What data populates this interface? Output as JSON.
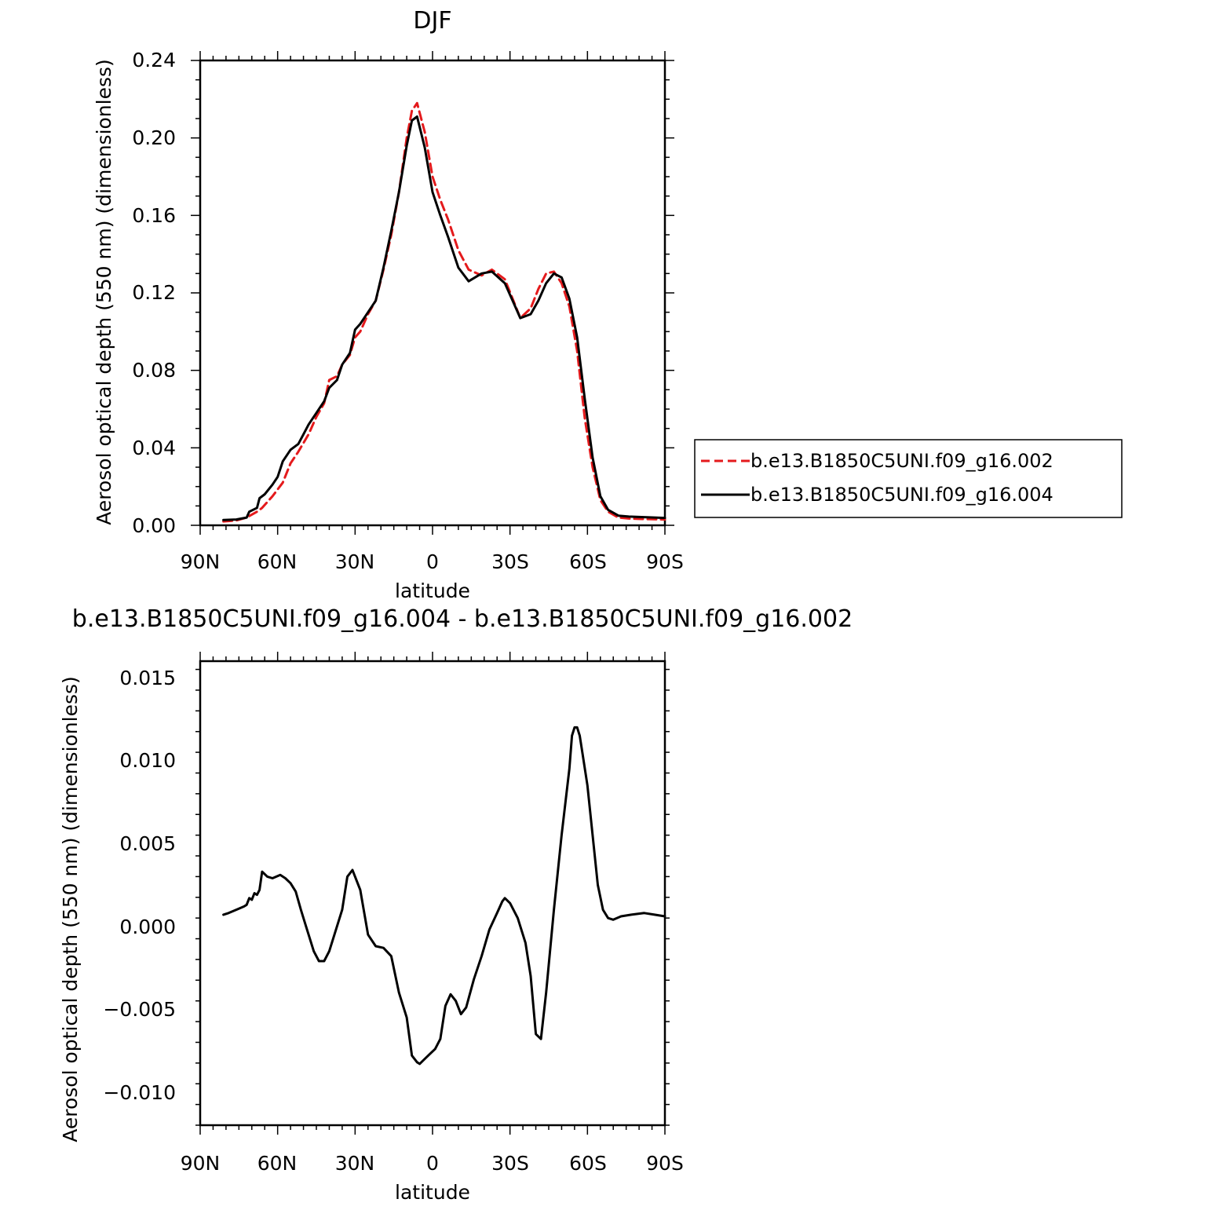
{
  "chart_data": [
    {
      "type": "line",
      "title": "DJF",
      "xlabel": "latitude",
      "ylabel": "Aerosol optical depth (550 nm) (dimensionless)",
      "xlim": [
        90,
        -90
      ],
      "ylim": [
        0.0,
        0.24
      ],
      "x_ticks": [
        "90N",
        "60N",
        "30N",
        "0",
        "30S",
        "60S",
        "90S"
      ],
      "y_ticks": [
        "0.00",
        "0.04",
        "0.08",
        "0.12",
        "0.16",
        "0.20",
        "0.24"
      ],
      "grid": false,
      "legend": "right",
      "series": [
        {
          "name": "b.e13.B1850C5UNI.f09_g16.002",
          "color": "#e41a1c",
          "dash": "dashed",
          "x": [
            81,
            76,
            72,
            68,
            66,
            62,
            58,
            55,
            52,
            48,
            45,
            42,
            40,
            37,
            35,
            32,
            30,
            28,
            25,
            22,
            19,
            16,
            13,
            10,
            8,
            6,
            3,
            0,
            -3,
            -6,
            -10,
            -14,
            -19,
            -23,
            -28,
            -31,
            -34,
            -38,
            -41,
            -44,
            -47,
            -50,
            -53,
            -56,
            -59,
            -62,
            -65,
            -68,
            -72,
            -76,
            -80,
            -84,
            -90
          ],
          "values": [
            0.002,
            0.0025,
            0.004,
            0.007,
            0.009,
            0.015,
            0.022,
            0.032,
            0.038,
            0.047,
            0.056,
            0.063,
            0.075,
            0.077,
            0.083,
            0.088,
            0.097,
            0.1,
            0.109,
            0.116,
            0.132,
            0.15,
            0.172,
            0.2,
            0.214,
            0.218,
            0.203,
            0.18,
            0.168,
            0.158,
            0.142,
            0.132,
            0.129,
            0.132,
            0.127,
            0.117,
            0.107,
            0.112,
            0.122,
            0.13,
            0.131,
            0.125,
            0.113,
            0.09,
            0.055,
            0.03,
            0.013,
            0.007,
            0.004,
            0.0035,
            0.0033,
            0.0032,
            0.003
          ]
        },
        {
          "name": "b.e13.B1850C5UNI.f09_g16.004",
          "color": "#000000",
          "dash": "solid",
          "x": [
            81,
            76,
            72,
            71,
            68,
            67,
            65,
            62,
            60,
            58,
            55,
            52,
            50,
            48,
            45,
            42,
            40,
            37,
            35,
            32,
            30,
            28,
            25,
            22,
            19,
            16,
            13,
            10,
            8,
            6,
            3,
            0,
            -3,
            -6,
            -10,
            -14,
            -19,
            -23,
            -28,
            -31,
            -34,
            -38,
            -41,
            -44,
            -47,
            -50,
            -53,
            -56,
            -59,
            -62,
            -65,
            -68,
            -72,
            -76,
            -80,
            -84,
            -90
          ],
          "values": [
            0.0027,
            0.003,
            0.004,
            0.007,
            0.009,
            0.014,
            0.016,
            0.021,
            0.025,
            0.033,
            0.039,
            0.042,
            0.047,
            0.052,
            0.058,
            0.064,
            0.071,
            0.075,
            0.083,
            0.089,
            0.101,
            0.104,
            0.11,
            0.116,
            0.133,
            0.152,
            0.172,
            0.196,
            0.209,
            0.211,
            0.195,
            0.172,
            0.16,
            0.149,
            0.133,
            0.126,
            0.13,
            0.131,
            0.125,
            0.116,
            0.107,
            0.109,
            0.116,
            0.125,
            0.13,
            0.128,
            0.117,
            0.097,
            0.065,
            0.035,
            0.015,
            0.008,
            0.005,
            0.0045,
            0.0043,
            0.0041,
            0.0038
          ]
        }
      ]
    },
    {
      "type": "line",
      "title": "b.e13.B1850C5UNI.f09_g16.004 - b.e13.B1850C5UNI.f09_g16.002",
      "xlabel": "latitude",
      "ylabel": "Aerosol optical depth (550 nm) (dimensionless)",
      "xlim": [
        90,
        -90
      ],
      "ylim": [
        -0.012,
        0.016
      ],
      "x_ticks": [
        "90N",
        "60N",
        "30N",
        "0",
        "30S",
        "60S",
        "90S"
      ],
      "y_ticks": [
        "−0.010",
        "−0.005",
        "0.000",
        "0.005",
        "0.010",
        "0.015"
      ],
      "grid": false,
      "series": [
        {
          "color": "#000000",
          "x": [
            81,
            79,
            76,
            73,
            72,
            71,
            70,
            69,
            68,
            67,
            66,
            64,
            62,
            59,
            57,
            55,
            53,
            51,
            49,
            46,
            44,
            42,
            40,
            38,
            35,
            33,
            31,
            30,
            28,
            25,
            22,
            19,
            16,
            13,
            10,
            8,
            6,
            5,
            3,
            1,
            -1,
            -3,
            -5,
            -7,
            -9,
            -11,
            -13,
            -16,
            -19,
            -22,
            -25,
            -27,
            -28,
            -30,
            -33,
            -36,
            -38,
            -40,
            -42,
            -44,
            -47,
            -50,
            -53,
            -54,
            -55,
            -56,
            -57,
            -58,
            -60,
            -62,
            -64,
            -66,
            -68,
            -70,
            -73,
            -77,
            -82,
            -86,
            -90
          ],
          "values": [
            0.0007,
            0.0008,
            0.001,
            0.0012,
            0.0013,
            0.0017,
            0.0016,
            0.002,
            0.0019,
            0.0022,
            0.0033,
            0.003,
            0.0029,
            0.0031,
            0.0029,
            0.0026,
            0.0021,
            0.001,
            0.0,
            -0.0015,
            -0.0021,
            -0.0021,
            -0.0015,
            -0.0005,
            0.001,
            0.003,
            0.0034,
            0.003,
            0.0022,
            -0.0005,
            -0.0012,
            -0.0013,
            -0.0018,
            -0.004,
            -0.0055,
            -0.0078,
            -0.0082,
            -0.0083,
            -0.008,
            -0.0077,
            -0.0074,
            -0.0068,
            -0.0048,
            -0.0041,
            -0.0045,
            -0.0053,
            -0.0049,
            -0.0032,
            -0.0018,
            -0.0002,
            0.0008,
            0.0015,
            0.0017,
            0.0014,
            0.0005,
            -0.001,
            -0.003,
            -0.0065,
            -0.0068,
            -0.004,
            0.001,
            0.0055,
            0.0095,
            0.0115,
            0.012,
            0.012,
            0.0115,
            0.0105,
            0.0085,
            0.0055,
            0.0025,
            0.001,
            0.0005,
            0.0004,
            0.0006,
            0.0007,
            0.0008,
            0.0007,
            0.0006
          ]
        }
      ]
    }
  ]
}
